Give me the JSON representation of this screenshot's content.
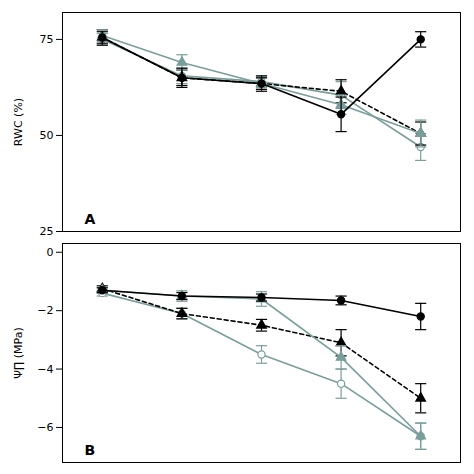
{
  "chart_data": [
    {
      "type": "line",
      "ylabel": "RWC (%)",
      "annotations": [
        "A"
      ],
      "x": [
        1,
        2,
        3,
        4,
        5
      ],
      "xlim": [
        0.5,
        5.5
      ],
      "ylim": [
        25,
        82
      ],
      "yticks": [
        25,
        50,
        75
      ],
      "tick_labels": "y",
      "grid": false,
      "series": [
        {
          "color": "#000000",
          "marker": "circle",
          "line_style": "solid",
          "values": [
            75.5,
            65.0,
            63.5,
            55.5,
            75.0
          ],
          "yerr": [
            1.5,
            2.5,
            1.5,
            4.5,
            2.0
          ]
        },
        {
          "color": "#7a9e9b",
          "marker": "triangle",
          "line_style": "solid",
          "values": [
            76.0,
            69.0,
            63.5,
            58.0,
            50.5
          ],
          "yerr": [
            1.5,
            2.0,
            1.5,
            2.5,
            3.5
          ]
        },
        {
          "color": "#000000",
          "marker": "triangle",
          "line_style": "dashed",
          "values": [
            75.5,
            65.0,
            63.5,
            61.5,
            50.5
          ],
          "yerr": [
            2.0,
            2.0,
            2.0,
            3.0,
            3.0
          ]
        },
        {
          "color": "#7a9e9b",
          "marker": "circle-open",
          "line_style": "solid",
          "values": [
            75.0,
            65.5,
            64.0,
            60.5,
            47.0
          ],
          "yerr": [
            1.5,
            2.0,
            1.5,
            3.5,
            3.5
          ]
        }
      ]
    },
    {
      "type": "line",
      "ylabel": "Ψ∏ (MPa)",
      "annotations": [
        "B"
      ],
      "x": [
        1,
        2,
        3,
        4,
        5
      ],
      "xlim": [
        0.5,
        5.5
      ],
      "ylim": [
        -7.2,
        0.3
      ],
      "yticks": [
        0,
        -2,
        -4,
        -6
      ],
      "tick_labels": "y",
      "grid": false,
      "series": [
        {
          "color": "#000000",
          "marker": "circle",
          "line_style": "solid",
          "values": [
            -1.3,
            -1.5,
            -1.55,
            -1.65,
            -2.2
          ],
          "yerr": [
            0.08,
            0.12,
            0.12,
            0.15,
            0.45
          ]
        },
        {
          "color": "#7a9e9b",
          "marker": "triangle",
          "line_style": "solid",
          "values": [
            -1.3,
            -1.5,
            -1.6,
            -3.6,
            -6.3
          ],
          "yerr": [
            0.1,
            0.18,
            0.25,
            0.4,
            0.45
          ]
        },
        {
          "color": "#000000",
          "marker": "triangle",
          "line_style": "dashed",
          "values": [
            -1.25,
            -2.1,
            -2.5,
            -3.1,
            -5.0
          ],
          "yerr": [
            0.1,
            0.18,
            0.2,
            0.45,
            0.5
          ]
        },
        {
          "color": "#7a9e9b",
          "marker": "circle-open",
          "line_style": "solid",
          "values": [
            -1.4,
            -2.1,
            -3.5,
            -4.5,
            -6.3
          ],
          "yerr": [
            0.1,
            0.18,
            0.3,
            0.5,
            0.45
          ]
        }
      ]
    }
  ]
}
